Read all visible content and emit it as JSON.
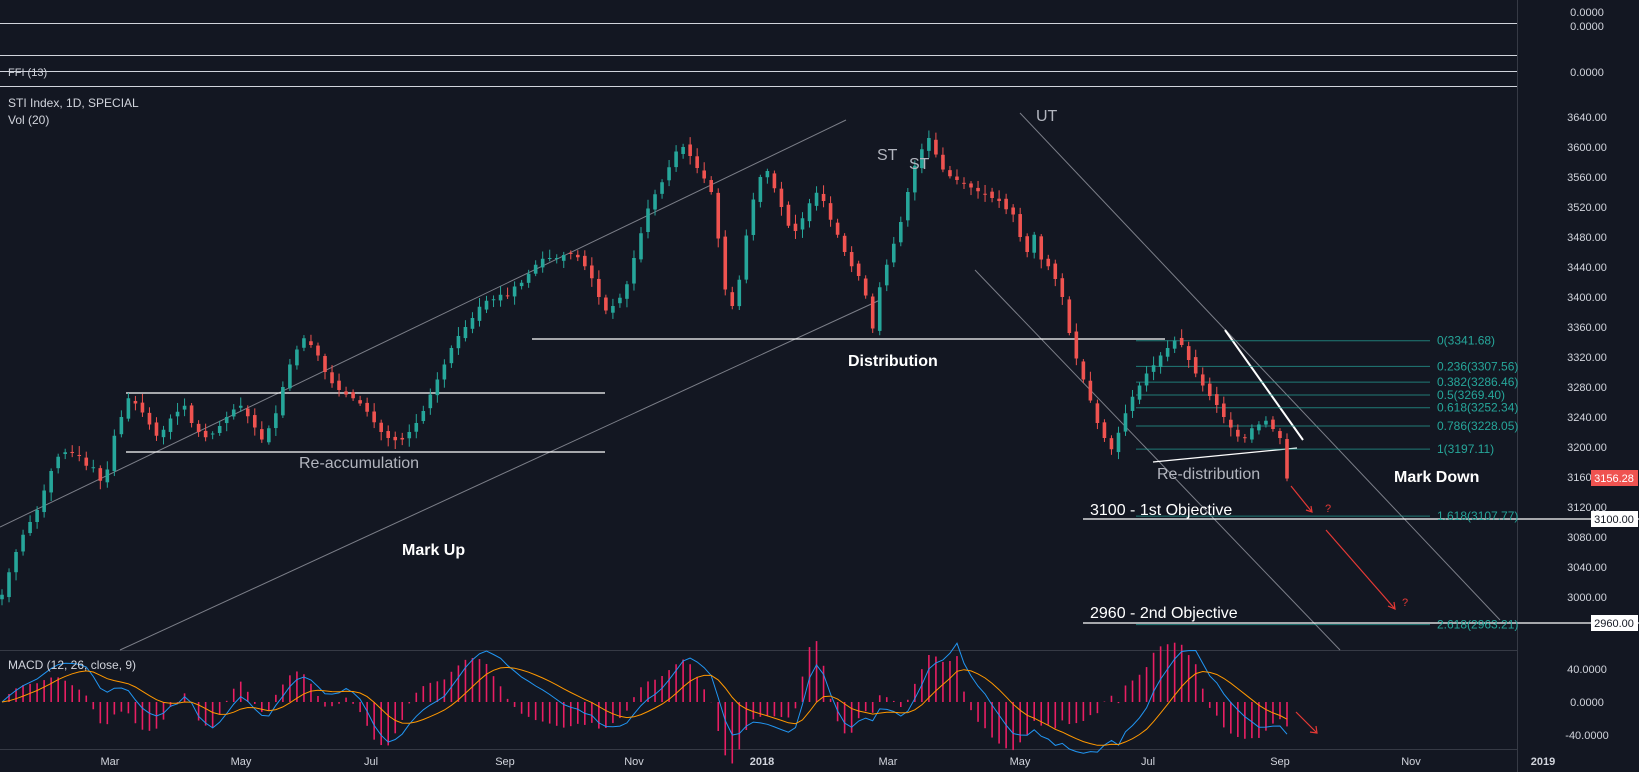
{
  "panes": {
    "top_value_a": "0.0000",
    "top_value_b": "0.0000",
    "ffi_label": "FFI (13)",
    "ffi_value": "0.0000",
    "main_title": "STI Index, 1D, SPECIAL",
    "vol_label": "Vol (20)",
    "macd_label": "MACD (12, 26, close, 9)"
  },
  "colors": {
    "background": "#131722",
    "up": "#26a69a",
    "down": "#ef5350",
    "macd_line": "#2196f3",
    "signal_line": "#ff9800",
    "hist": "#e91e63",
    "fib": "#26a69a",
    "arrow": "#e53935"
  },
  "chart_data": {
    "type": "candlestick",
    "ylim": [
      2955,
      3655
    ],
    "y_ticks": [
      "3640.00",
      "3600.00",
      "3560.00",
      "3520.00",
      "3480.00",
      "3440.00",
      "3400.00",
      "3360.00",
      "3320.00",
      "3280.00",
      "3240.00",
      "3200.00",
      "3160.00",
      "3120.00",
      "3080.00",
      "3040.00",
      "3000.00"
    ],
    "x_ticks": [
      "Mar",
      "May",
      "Jul",
      "Sep",
      "Nov",
      "2018",
      "Mar",
      "May",
      "Jul",
      "Sep",
      "Nov",
      "2019"
    ],
    "last_price": "3156.28",
    "marked_levels": [
      "3100.00",
      "2960.00"
    ],
    "annotations": {
      "ut": "UT",
      "st1": "ST",
      "st2": "ST",
      "distribution": "Distribution",
      "reaccumulation": "Re-accumulation",
      "markup": "Mark Up",
      "redistribution": "Re-distribution",
      "markdown": "Mark Down",
      "obj1": "3100 - 1st Objective",
      "obj2": "2960 - 2nd Objective",
      "q1": "?",
      "q2": "?"
    },
    "fib_levels": [
      {
        "label": "0(3341.68)",
        "value": 3341.68
      },
      {
        "label": "0.236(3307.56)",
        "value": 3307.56
      },
      {
        "label": "0.382(3286.46)",
        "value": 3286.46
      },
      {
        "label": "0.5(3269.40)",
        "value": 3269.4
      },
      {
        "label": "0.618(3252.34)",
        "value": 3252.34
      },
      {
        "label": "0.786(3228.05)",
        "value": 3228.05
      },
      {
        "label": "1(3197.11)",
        "value": 3197.11
      },
      {
        "label": "1.618(3107.77)",
        "value": 3107.77
      },
      {
        "label": "2.618(2963.21)",
        "value": 2963.21
      }
    ],
    "price_path": [
      3003,
      3033,
      3060,
      3083,
      3100,
      3116,
      3142,
      3168,
      3187,
      3193,
      3192,
      3188,
      3175,
      3173,
      3155,
      3170,
      3215,
      3240,
      3265,
      3258,
      3246,
      3230,
      3215,
      3223,
      3238,
      3247,
      3255,
      3232,
      3220,
      3213,
      3218,
      3228,
      3240,
      3250,
      3255,
      3241,
      3226,
      3210,
      3225,
      3245,
      3280,
      3310,
      3330,
      3345,
      3336,
      3322,
      3300,
      3285,
      3276,
      3270,
      3265,
      3258,
      3247,
      3233,
      3220,
      3212,
      3209,
      3210,
      3220,
      3232,
      3248,
      3270,
      3290,
      3310,
      3332,
      3348,
      3360,
      3372,
      3387,
      3395,
      3397,
      3403,
      3402,
      3414,
      3419,
      3431,
      3443,
      3451,
      3452,
      3452,
      3456,
      3458,
      3453,
      3441,
      3425,
      3400,
      3382,
      3388,
      3399,
      3417,
      3452,
      3485,
      3518,
      3537,
      3553,
      3573,
      3594,
      3600,
      3588,
      3572,
      3558,
      3540,
      3478,
      3410,
      3388,
      3423,
      3482,
      3530,
      3560,
      3568,
      3545,
      3520,
      3495,
      3488,
      3505,
      3525,
      3539,
      3528,
      3503,
      3483,
      3460,
      3441,
      3428,
      3402,
      3358,
      3413,
      3443,
      3471,
      3500,
      3540,
      3575,
      3597,
      3612,
      3590,
      3570,
      3561,
      3556,
      3551,
      3546,
      3541,
      3537,
      3532,
      3528,
      3517,
      3510,
      3480,
      3460,
      3483,
      3450,
      3441,
      3424,
      3400,
      3352,
      3318,
      3290,
      3262,
      3232,
      3212,
      3197,
      3219,
      3245,
      3267,
      3282,
      3298,
      3309,
      3322,
      3332,
      3342,
      3336,
      3316,
      3298,
      3282,
      3268,
      3256,
      3240,
      3226,
      3214,
      3212,
      3225,
      3230,
      3235,
      3224,
      3212,
      3158
    ]
  }
}
